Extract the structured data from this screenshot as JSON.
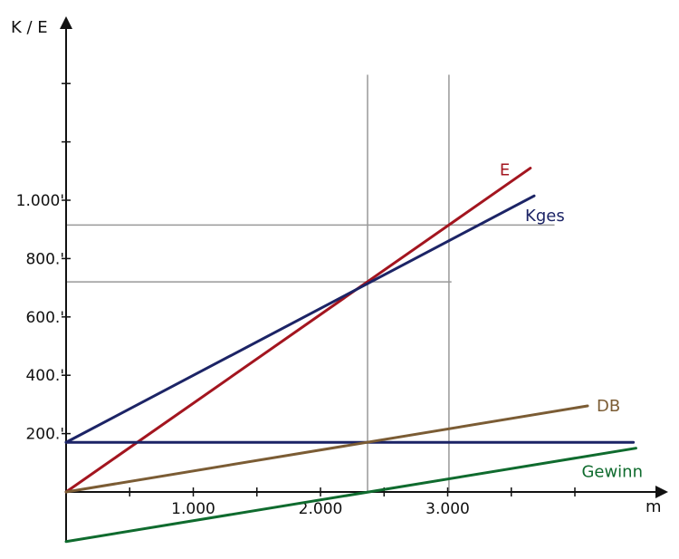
{
  "chart_data": {
    "type": "line",
    "xlabel": "m",
    "ylabel": "K / E",
    "xlim": [
      0,
      4500
    ],
    "ylim": [
      -170,
      1400
    ],
    "x_ticks": [
      {
        "value": 500,
        "label": ""
      },
      {
        "value": 1000,
        "label": "1.000"
      },
      {
        "value": 1500,
        "label": ""
      },
      {
        "value": 2000,
        "label": "2.000"
      },
      {
        "value": 2500,
        "label": ""
      },
      {
        "value": 3000,
        "label": "3.000"
      },
      {
        "value": 3500,
        "label": ""
      },
      {
        "value": 4000,
        "label": ""
      }
    ],
    "y_ticks": [
      {
        "value": 200,
        "label": "200.'"
      },
      {
        "value": 400,
        "label": "400.'"
      },
      {
        "value": 600,
        "label": "600.'"
      },
      {
        "value": 800,
        "label": "800.'"
      },
      {
        "value": 1000,
        "label": "1.000'"
      },
      {
        "value": 1200,
        "label": ""
      },
      {
        "value": 1400,
        "label": ""
      }
    ],
    "series": [
      {
        "name": "E",
        "color": "#a3151f",
        "x": [
          0,
          3650
        ],
        "y": [
          0,
          1110
        ]
      },
      {
        "name": "Kges",
        "color": "#1c2466",
        "x": [
          0,
          3680
        ],
        "y": [
          170,
          1015
        ]
      },
      {
        "name": "",
        "color": "#1c2466",
        "x": [
          0,
          4460
        ],
        "y": [
          170,
          170
        ]
      },
      {
        "name": "DB",
        "color": "#7b5c34",
        "x": [
          0,
          4100
        ],
        "y": [
          0,
          295
        ]
      },
      {
        "name": "Gewinn",
        "color": "#0f6b2e",
        "x": [
          0,
          4480
        ],
        "y": [
          -170,
          150
        ]
      }
    ],
    "vertical_guides": [
      {
        "x": 2370,
        "y_from": 0,
        "y_to": 1430
      },
      {
        "x": 3010,
        "y_from": 0,
        "y_to": 1430
      }
    ],
    "horizontal_guides": [
      {
        "y": 720,
        "x_from": 0,
        "x_to": 3030
      },
      {
        "y": 915,
        "x_from": 0,
        "x_to": 3840
      }
    ],
    "colors": {
      "axis": "#111111",
      "guide": "#999999"
    }
  }
}
